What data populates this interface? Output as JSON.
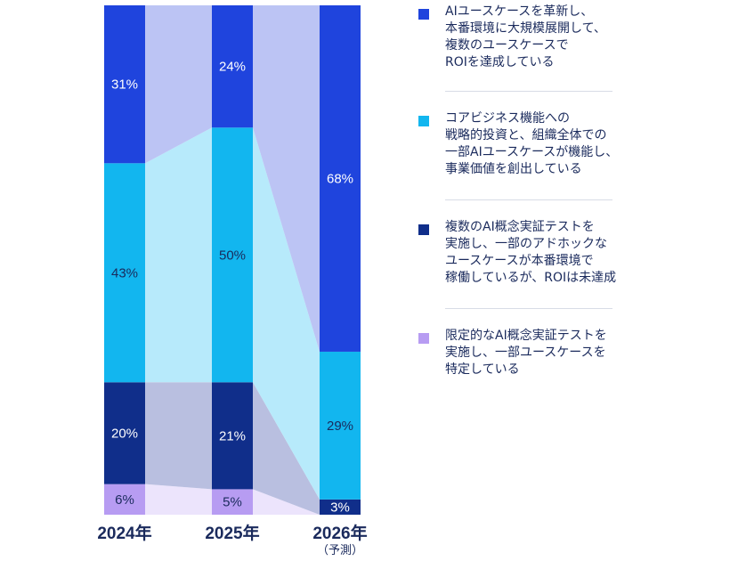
{
  "chart_data": {
    "type": "bar",
    "stacked": true,
    "percent_stacked": true,
    "categories": [
      "2024年",
      "2025年",
      "2026年"
    ],
    "category_notes": [
      "",
      "",
      "（予測）"
    ],
    "series": [
      {
        "name": "限定的なAI概念実証テストを\n実施し、一部ユースケースを\n特定している",
        "color": "#b79cf2",
        "label_color": "#1a2a5c",
        "values": [
          6,
          5,
          0
        ]
      },
      {
        "name": "複数のAI概念実証テストを\n実施し、一部のアドホックな\nユースケースが本番環境で\n稼働しているが、ROIは未達成",
        "color": "#102e8a",
        "label_color": "#ffffff",
        "values": [
          20,
          21,
          3
        ]
      },
      {
        "name": "コアビジネス機能への\n戦略的投資と、組織全体での\n一部AIユースケースが機能し、\n事業価値を創出している",
        "color": "#12b6ef",
        "label_color": "#1a2a5c",
        "values": [
          43,
          50,
          29
        ]
      },
      {
        "name": "AIユースケースを革新し、\n本番環境に大規模展開して、\n複数のユースケースで\nROIを達成している",
        "color": "#1f44dd",
        "label_color": "#ffffff",
        "values": [
          31,
          24,
          68
        ]
      }
    ],
    "data_labels": [
      [
        "6%",
        "5%",
        ""
      ],
      [
        "20%",
        "21%",
        "3%"
      ],
      [
        "43%",
        "50%",
        "29%"
      ],
      [
        "31%",
        "24%",
        "68%"
      ]
    ],
    "connector_colors": [
      "#ece4fc",
      "#b9bfe0",
      "#b7eafb",
      "#bcc4f4"
    ],
    "legend_order": [
      3,
      2,
      1,
      0
    ],
    "ylim": [
      0,
      100
    ],
    "legend_position": "right",
    "grid": false
  }
}
